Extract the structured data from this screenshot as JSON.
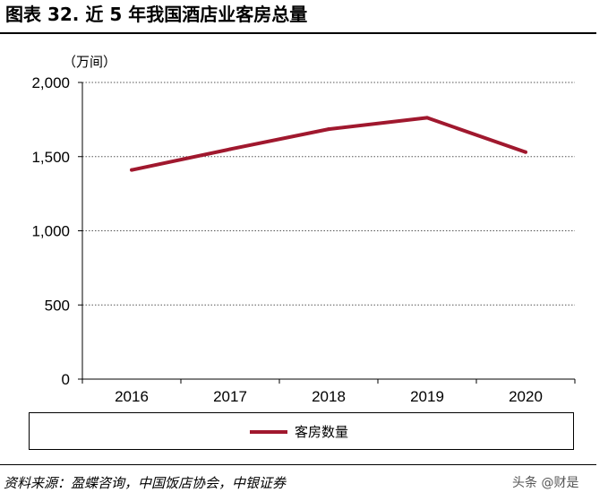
{
  "figure": {
    "title": "图表 32. 近 5 年我国酒店业客房总量",
    "source": "资料来源：盈蝶咨询，中国饭店协会，中银证券",
    "watermark": "头条 @财是"
  },
  "chart_data": {
    "type": "line",
    "unit": "（万间）",
    "categories": [
      "2016",
      "2017",
      "2018",
      "2019",
      "2020"
    ],
    "series": [
      {
        "name": "客房数量",
        "color": "#A0182E",
        "values": [
          1410,
          1550,
          1685,
          1762,
          1530
        ]
      }
    ],
    "ylim": [
      0,
      2000
    ],
    "yticks": [
      0,
      500,
      1000,
      1500,
      2000
    ],
    "ytick_labels": [
      "0",
      "500",
      "1,000",
      "1,500",
      "2,000"
    ],
    "grid": "horizontal dotted",
    "legend_position": "bottom"
  }
}
